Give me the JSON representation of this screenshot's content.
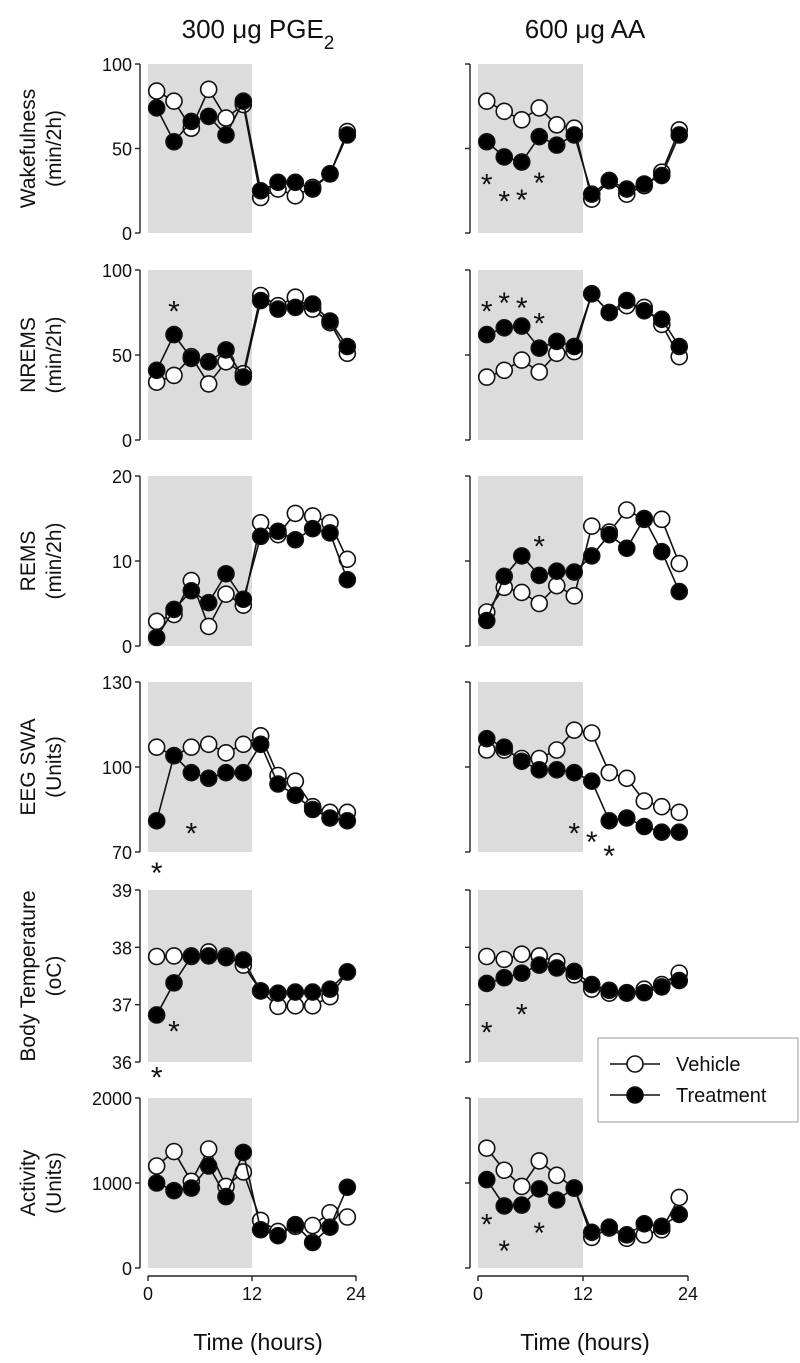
{
  "figure": {
    "columns": [
      {
        "title_main": "300 μg PGE",
        "title_sub": "2"
      },
      {
        "title_main": "600 μg AA",
        "title_sub": ""
      }
    ],
    "xlabel": "Time (hours)",
    "legend": {
      "vehicle": "Vehicle",
      "treatment": "Treatment"
    },
    "sig_marker": "*"
  },
  "chart_data": [
    {
      "type": "line",
      "row": 0,
      "col": 0,
      "ylabel": [
        "Wakefulness",
        "(min/2h)"
      ],
      "ylim": [
        0,
        100
      ],
      "yticks": [
        0,
        50,
        100
      ],
      "xlim": [
        0,
        24
      ],
      "xticks": [
        0,
        12,
        24
      ],
      "dark_period": [
        0,
        12
      ],
      "x": [
        1,
        3,
        5,
        7,
        9,
        11,
        13,
        15,
        17,
        19,
        21,
        23
      ],
      "series": [
        {
          "name": "Vehicle",
          "values": [
            84,
            78,
            62,
            85,
            68,
            76,
            21,
            26,
            22,
            27,
            35,
            60
          ]
        },
        {
          "name": "Treatment",
          "values": [
            74,
            54,
            66,
            69,
            58,
            78,
            25,
            30,
            30,
            26,
            35,
            58
          ]
        }
      ],
      "sig": []
    },
    {
      "type": "line",
      "row": 0,
      "col": 1,
      "ylabel": [
        "Wakefulness",
        "(min/2h)"
      ],
      "ylim": [
        0,
        100
      ],
      "yticks": [
        0,
        50,
        100
      ],
      "xlim": [
        0,
        24
      ],
      "xticks": [
        0,
        12,
        24
      ],
      "dark_period": [
        0,
        12
      ],
      "x": [
        1,
        3,
        5,
        7,
        9,
        11,
        13,
        15,
        17,
        19,
        21,
        23
      ],
      "series": [
        {
          "name": "Vehicle",
          "values": [
            78,
            72,
            67,
            74,
            64,
            62,
            20,
            31,
            23,
            28,
            36,
            61
          ]
        },
        {
          "name": "Treatment",
          "values": [
            54,
            45,
            42,
            57,
            52,
            58,
            23,
            31,
            26,
            29,
            34,
            58
          ]
        }
      ],
      "sig": [
        [
          1,
          31
        ],
        [
          3,
          21
        ],
        [
          5,
          22
        ],
        [
          7,
          32
        ]
      ]
    },
    {
      "type": "line",
      "row": 1,
      "col": 0,
      "ylabel": [
        "NREMS",
        "(min/2h)"
      ],
      "ylim": [
        0,
        100
      ],
      "yticks": [
        0,
        50,
        100
      ],
      "xlim": [
        0,
        24
      ],
      "xticks": [
        0,
        12,
        24
      ],
      "dark_period": [
        0,
        12
      ],
      "x": [
        1,
        3,
        5,
        7,
        9,
        11,
        13,
        15,
        17,
        19,
        21,
        23
      ],
      "series": [
        {
          "name": "Vehicle",
          "values": [
            34,
            38,
            49,
            33,
            46,
            39,
            85,
            79,
            84,
            77,
            69,
            51
          ]
        },
        {
          "name": "Treatment",
          "values": [
            41,
            62,
            48,
            46,
            53,
            37,
            82,
            77,
            78,
            80,
            70,
            55
          ]
        }
      ],
      "sig": [
        [
          3,
          78
        ]
      ]
    },
    {
      "type": "line",
      "row": 1,
      "col": 1,
      "ylabel": [
        "NREMS",
        "(min/2h)"
      ],
      "ylim": [
        0,
        100
      ],
      "yticks": [
        0,
        50,
        100
      ],
      "xlim": [
        0,
        24
      ],
      "xticks": [
        0,
        12,
        24
      ],
      "dark_period": [
        0,
        12
      ],
      "x": [
        1,
        3,
        5,
        7,
        9,
        11,
        13,
        15,
        17,
        19,
        21,
        23
      ],
      "series": [
        {
          "name": "Vehicle",
          "values": [
            37,
            41,
            47,
            40,
            51,
            52,
            86,
            75,
            79,
            78,
            68,
            49
          ]
        },
        {
          "name": "Treatment",
          "values": [
            62,
            66,
            67,
            54,
            58,
            55,
            86,
            75,
            82,
            76,
            71,
            55
          ]
        }
      ],
      "sig": [
        [
          1,
          78
        ],
        [
          3,
          83
        ],
        [
          5,
          80
        ],
        [
          7,
          71
        ]
      ]
    },
    {
      "type": "line",
      "row": 2,
      "col": 0,
      "ylabel": [
        "REMS",
        "(min/2h)"
      ],
      "ylim": [
        0,
        20
      ],
      "yticks": [
        0,
        10,
        20
      ],
      "xlim": [
        0,
        24
      ],
      "xticks": [
        0,
        12,
        24
      ],
      "dark_period": [
        0,
        12
      ],
      "x": [
        1,
        3,
        5,
        7,
        9,
        11,
        13,
        15,
        17,
        19,
        21,
        23
      ],
      "series": [
        {
          "name": "Vehicle",
          "values": [
            2.9,
            3.7,
            7.7,
            2.3,
            6.1,
            4.8,
            14.5,
            13.1,
            15.6,
            15.3,
            14.5,
            10.2
          ]
        },
        {
          "name": "Treatment",
          "values": [
            1.0,
            4.3,
            6.5,
            5.1,
            8.5,
            5.5,
            12.9,
            13.5,
            12.5,
            13.8,
            13.3,
            7.8
          ]
        }
      ],
      "sig": []
    },
    {
      "type": "line",
      "row": 2,
      "col": 1,
      "ylabel": [
        "REMS",
        "(min/2h)"
      ],
      "ylim": [
        0,
        20
      ],
      "yticks": [
        0,
        10,
        20
      ],
      "xlim": [
        0,
        24
      ],
      "xticks": [
        0,
        12,
        24
      ],
      "dark_period": [
        0,
        12
      ],
      "x": [
        1,
        3,
        5,
        7,
        9,
        11,
        13,
        15,
        17,
        19,
        21,
        23
      ],
      "series": [
        {
          "name": "Vehicle",
          "values": [
            4.0,
            6.9,
            6.3,
            5.0,
            7.1,
            5.9,
            14.1,
            13.4,
            16.0,
            14.9,
            14.9,
            9.7
          ]
        },
        {
          "name": "Treatment",
          "values": [
            3.0,
            8.2,
            10.6,
            8.3,
            8.8,
            8.7,
            10.6,
            13.1,
            11.5,
            15.0,
            11.1,
            6.4
          ]
        }
      ],
      "sig": [
        [
          7,
          12.2
        ]
      ]
    },
    {
      "type": "line",
      "row": 3,
      "col": 0,
      "ylabel": [
        "EEG SWA",
        "(Units)"
      ],
      "ylim": [
        70,
        130
      ],
      "yticks": [
        70,
        100,
        130
      ],
      "xlim": [
        0,
        24
      ],
      "xticks": [
        0,
        12,
        24
      ],
      "dark_period": [
        0,
        12
      ],
      "x": [
        1,
        3,
        5,
        7,
        9,
        11,
        13,
        15,
        17,
        19,
        21,
        23
      ],
      "series": [
        {
          "name": "Vehicle",
          "values": [
            107,
            104,
            107,
            108,
            105,
            108,
            111,
            97,
            95,
            86,
            84,
            84
          ]
        },
        {
          "name": "Treatment",
          "values": [
            81,
            104,
            98,
            96,
            98,
            98,
            108,
            94,
            90,
            85,
            82,
            81
          ]
        }
      ],
      "sig": [
        [
          1,
          64
        ],
        [
          5,
          78
        ]
      ]
    },
    {
      "type": "line",
      "row": 3,
      "col": 1,
      "ylabel": [
        "EEG SWA",
        "(Units)"
      ],
      "ylim": [
        70,
        130
      ],
      "yticks": [
        70,
        100,
        130
      ],
      "xlim": [
        0,
        24
      ],
      "xticks": [
        0,
        12,
        24
      ],
      "dark_period": [
        0,
        12
      ],
      "x": [
        1,
        3,
        5,
        7,
        9,
        11,
        13,
        15,
        17,
        19,
        21,
        23
      ],
      "series": [
        {
          "name": "Vehicle",
          "values": [
            106,
            106,
            103,
            103,
            106,
            113,
            112,
            98,
            96,
            88,
            86,
            84
          ]
        },
        {
          "name": "Treatment",
          "values": [
            110,
            107,
            102,
            99,
            99,
            98,
            95,
            81,
            82,
            79,
            77,
            77
          ]
        }
      ],
      "sig": [
        [
          11,
          78
        ],
        [
          13,
          75
        ],
        [
          15,
          70
        ]
      ]
    },
    {
      "type": "line",
      "row": 4,
      "col": 0,
      "ylabel": [
        "Body Temperature",
        "(oC)"
      ],
      "ylim": [
        36,
        39
      ],
      "yticks": [
        36,
        37,
        38,
        39
      ],
      "xlim": [
        0,
        24
      ],
      "xticks": [
        0,
        12,
        24
      ],
      "dark_period": [
        0,
        12
      ],
      "x": [
        1,
        3,
        5,
        7,
        9,
        11,
        13,
        15,
        17,
        19,
        21,
        23
      ],
      "series": [
        {
          "name": "Vehicle",
          "values": [
            37.84,
            37.85,
            37.85,
            37.92,
            37.85,
            37.69,
            37.24,
            36.97,
            36.98,
            36.98,
            37.14,
            37.57
          ]
        },
        {
          "name": "Treatment",
          "values": [
            36.82,
            37.38,
            37.84,
            37.85,
            37.82,
            37.78,
            37.24,
            37.2,
            37.22,
            37.22,
            37.27,
            37.57
          ]
        }
      ],
      "sig": [
        [
          1,
          35.8
        ],
        [
          3,
          36.6
        ]
      ]
    },
    {
      "type": "line",
      "row": 4,
      "col": 1,
      "ylabel": [
        "Body Temperature",
        "(oC)"
      ],
      "ylim": [
        36,
        39
      ],
      "yticks": [
        36,
        37,
        38,
        39
      ],
      "xlim": [
        0,
        24
      ],
      "xticks": [
        0,
        12,
        24
      ],
      "dark_period": [
        0,
        12
      ],
      "x": [
        1,
        3,
        5,
        7,
        9,
        11,
        13,
        15,
        17,
        19,
        21,
        23
      ],
      "series": [
        {
          "name": "Vehicle",
          "values": [
            37.84,
            37.79,
            37.88,
            37.85,
            37.75,
            37.52,
            37.27,
            37.2,
            37.2,
            37.27,
            37.35,
            37.55
          ]
        },
        {
          "name": "Treatment",
          "values": [
            37.37,
            37.47,
            37.55,
            37.69,
            37.64,
            37.58,
            37.35,
            37.25,
            37.21,
            37.21,
            37.31,
            37.42
          ]
        }
      ],
      "sig": [
        [
          1,
          36.58
        ],
        [
          5,
          36.9
        ]
      ]
    },
    {
      "type": "line",
      "row": 5,
      "col": 0,
      "ylabel": [
        "Activity",
        "(Units)"
      ],
      "ylim": [
        0,
        2000
      ],
      "yticks": [
        0,
        1000,
        2000
      ],
      "xlim": [
        0,
        24
      ],
      "xticks": [
        0,
        12,
        24
      ],
      "dark_period": [
        0,
        12
      ],
      "x": [
        1,
        3,
        5,
        7,
        9,
        11,
        13,
        15,
        17,
        19,
        21,
        23
      ],
      "series": [
        {
          "name": "Vehicle",
          "values": [
            1200,
            1370,
            1020,
            1400,
            960,
            1130,
            560,
            430,
            490,
            500,
            650,
            600
          ]
        },
        {
          "name": "Treatment",
          "values": [
            1000,
            910,
            940,
            1200,
            840,
            1360,
            450,
            380,
            510,
            300,
            480,
            950
          ]
        }
      ],
      "sig": []
    },
    {
      "type": "line",
      "row": 5,
      "col": 1,
      "ylabel": [
        "Activity",
        "(Units)"
      ],
      "ylim": [
        0,
        2000
      ],
      "yticks": [
        0,
        1000,
        2000
      ],
      "xlim": [
        0,
        24
      ],
      "xticks": [
        0,
        12,
        24
      ],
      "dark_period": [
        0,
        12
      ],
      "x": [
        1,
        3,
        5,
        7,
        9,
        11,
        13,
        15,
        17,
        19,
        21,
        23
      ],
      "series": [
        {
          "name": "Vehicle",
          "values": [
            1410,
            1150,
            960,
            1260,
            1090,
            940,
            360,
            470,
            350,
            390,
            450,
            830
          ]
        },
        {
          "name": "Treatment",
          "values": [
            1040,
            730,
            740,
            930,
            800,
            940,
            420,
            480,
            390,
            520,
            490,
            630
          ]
        }
      ],
      "sig": [
        [
          1,
          560
        ],
        [
          3,
          250
        ],
        [
          7,
          460
        ]
      ]
    }
  ],
  "colors": {
    "vehicle_fill": "#ffffff",
    "treatment_fill": "#000000",
    "dark_period": "#dcdcdc",
    "axis": "#222222",
    "error_bar": "#9a9a9a"
  }
}
